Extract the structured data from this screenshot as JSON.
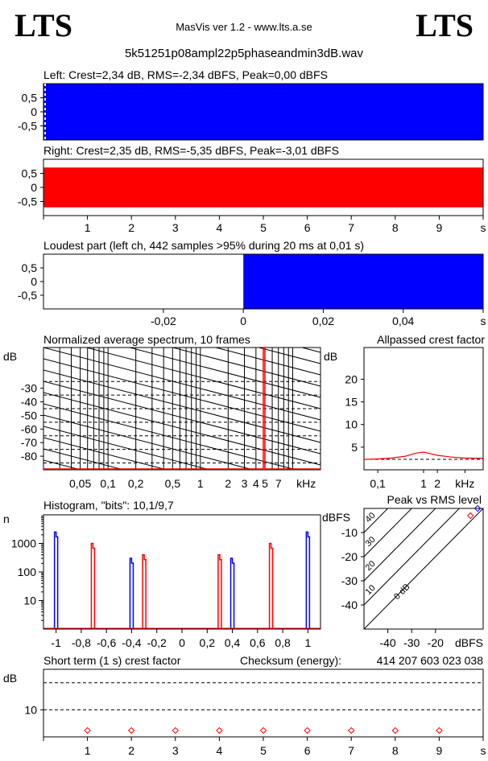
{
  "header": {
    "logo_left": "LTS",
    "logo_right": "LTS",
    "app_title": "MasVis ver 1.2 - www.lts.a.se",
    "filename": "5k51251p08ampl22p5phaseandmin3dB.wav"
  },
  "chart_data": [
    {
      "id": "left",
      "type": "area",
      "title": "Left: Crest=2,34 dB, RMS=-2,34 dBFS, Peak=0,00 dBFS",
      "ylim": [
        -1,
        1
      ],
      "yticks": [
        "0,5",
        "0",
        "-0,5"
      ],
      "ytick_values": [
        0.5,
        0,
        -0.5
      ],
      "fill_color": "#0000ff",
      "fill_range": [
        -1,
        1
      ]
    },
    {
      "id": "right",
      "type": "area",
      "title": "Right: Crest=2,35 dB, RMS=-5,35 dBFS, Peak=-3,01 dBFS",
      "ylim": [
        -1,
        1
      ],
      "yticks": [
        "0,5",
        "0",
        "-0,5"
      ],
      "ytick_values": [
        0.5,
        0,
        -0.5
      ],
      "fill_color": "#ff0000",
      "fill_range": [
        -0.7071,
        0.7071
      ],
      "xlim": [
        0,
        10
      ],
      "xticks": [
        "1",
        "2",
        "3",
        "4",
        "5",
        "6",
        "7",
        "8",
        "9",
        "s"
      ],
      "xtick_values": [
        1,
        2,
        3,
        4,
        5,
        6,
        7,
        8,
        9,
        10
      ]
    },
    {
      "id": "loudest",
      "type": "area",
      "title": "Loudest part (left  ch, 442 samples >95% during 20 ms at 0,01 s)",
      "xlim": [
        -0.05,
        0.06
      ],
      "ylim": [
        -1,
        1
      ],
      "yticks": [
        "0,5",
        "0",
        "-0,5"
      ],
      "ytick_values": [
        0.5,
        0,
        -0.5
      ],
      "xticks": [
        "-0,02",
        "0",
        "0,02",
        "0,04",
        "s"
      ],
      "xtick_values": [
        -0.02,
        0,
        0.02,
        0.04,
        0.06
      ],
      "fill_color": "#0000ff",
      "fill_x": [
        0,
        0.06
      ]
    },
    {
      "id": "spectrum",
      "type": "line",
      "title": "Normalized average spectrum, 10 frames",
      "ylabel": "dB",
      "ylim": [
        -90,
        0
      ],
      "yticks": [
        "-30",
        "-40",
        "-50",
        "-60",
        "-70",
        "-80"
      ],
      "ytick_values": [
        -30,
        -40,
        -50,
        -60,
        -70,
        -80
      ],
      "xscale": "log",
      "xlim": [
        0.02,
        20
      ],
      "xticks": [
        "0,05",
        "0,1",
        "0,2",
        "0,5",
        "1",
        "2",
        "3",
        "4",
        "5",
        "7",
        "kHz"
      ],
      "xtick_values": [
        0.05,
        0.1,
        0.2,
        0.5,
        1,
        2,
        3,
        4,
        5,
        7,
        14
      ],
      "peak_khz": 5,
      "noise_floor_db": -90
    },
    {
      "id": "allpass",
      "type": "line",
      "title": "Allpassed crest factor",
      "ylabel": "dB",
      "ylim": [
        0,
        27
      ],
      "yticks": [
        "20",
        "15",
        "10",
        "5"
      ],
      "ytick_values": [
        20,
        15,
        10,
        5
      ],
      "xscale": "log",
      "xlim": [
        0.05,
        20
      ],
      "xticks": [
        "0,1",
        "1",
        "2",
        "kHz"
      ],
      "xtick_values": [
        0.1,
        1,
        2,
        8
      ],
      "ref_db": 2.3,
      "x": [
        0.05,
        0.1,
        0.2,
        0.4,
        0.7,
        1.0,
        1.5,
        2.0,
        4.0,
        8.0,
        20.0
      ],
      "y": [
        2.3,
        2.4,
        2.6,
        3.0,
        3.7,
        3.9,
        3.5,
        3.2,
        2.8,
        2.6,
        2.5
      ]
    },
    {
      "id": "histogram",
      "type": "bar",
      "title": "Histogram, \"bits\": 10,1/9,7",
      "ylabel": "n",
      "yscale": "log",
      "ylim": [
        1,
        10000
      ],
      "yticks": [
        "1000",
        "100",
        "10"
      ],
      "ytick_values": [
        1000,
        100,
        10
      ],
      "xlim": [
        -1.1,
        1.1
      ],
      "xticks": [
        "-1",
        "-0,8",
        "-0,6",
        "-0,4",
        "-0,2",
        "0",
        "0,2",
        "0,4",
        "0,6",
        "0,8",
        "1"
      ],
      "xtick_values": [
        -1,
        -0.8,
        -0.6,
        -0.4,
        -0.2,
        0,
        0.2,
        0.4,
        0.6,
        0.8,
        1
      ],
      "series": [
        {
          "color": "#0000ff",
          "x": [
            -1,
            -0.4,
            0.4,
            1
          ],
          "values": [
            2500,
            300,
            300,
            2500
          ]
        },
        {
          "color": "#ff0000",
          "x": [
            -0.7071,
            -0.3,
            0.3,
            0.7071
          ],
          "values": [
            1000,
            400,
            400,
            1000
          ]
        }
      ]
    },
    {
      "id": "peakrms",
      "type": "scatter",
      "title": "Peak vs RMS level",
      "ylabel": "dBFS",
      "xlabel": "dBFS",
      "xlim": [
        -50,
        0
      ],
      "ylim": [
        -50,
        0
      ],
      "yticks": [
        "-10",
        "-20",
        "-30",
        "-40"
      ],
      "ytick_values": [
        -10,
        -20,
        -30,
        -40
      ],
      "xticks": [
        "-40",
        "-30",
        "-20"
      ],
      "xtick_values": [
        -40,
        -30,
        -20
      ],
      "diagonal_labels": [
        "0 dB",
        "10",
        "20",
        "30",
        "40"
      ],
      "diagonal_values": [
        0,
        10,
        20,
        30,
        40
      ],
      "series": [
        {
          "color": "#0000ff",
          "x": [
            -2.34
          ],
          "y": [
            0
          ]
        },
        {
          "color": "#ff0000",
          "x": [
            -5.35
          ],
          "y": [
            -3.01
          ]
        }
      ]
    },
    {
      "id": "shortterm",
      "type": "scatter",
      "title": "Short term (1 s) crest factor",
      "checksum_label": "Checksum (energy):",
      "checksum_value": "414 207 603 023 038",
      "ylabel": "dB",
      "ylim": [
        0,
        25
      ],
      "yticks": [
        "10"
      ],
      "ytick_values": [
        10
      ],
      "dashed": [
        20,
        10
      ],
      "xlim": [
        0,
        10
      ],
      "xticks": [
        "1",
        "2",
        "3",
        "4",
        "5",
        "6",
        "7",
        "8",
        "9",
        "s"
      ],
      "xtick_values": [
        1,
        2,
        3,
        4,
        5,
        6,
        7,
        8,
        9,
        10
      ],
      "series": [
        {
          "color": "#ff0000",
          "x": [
            1,
            2,
            3,
            4,
            5,
            6,
            7,
            8,
            9
          ],
          "y": [
            2.35,
            2.35,
            2.35,
            2.35,
            2.35,
            2.35,
            2.35,
            2.35,
            2.35
          ]
        }
      ]
    }
  ]
}
